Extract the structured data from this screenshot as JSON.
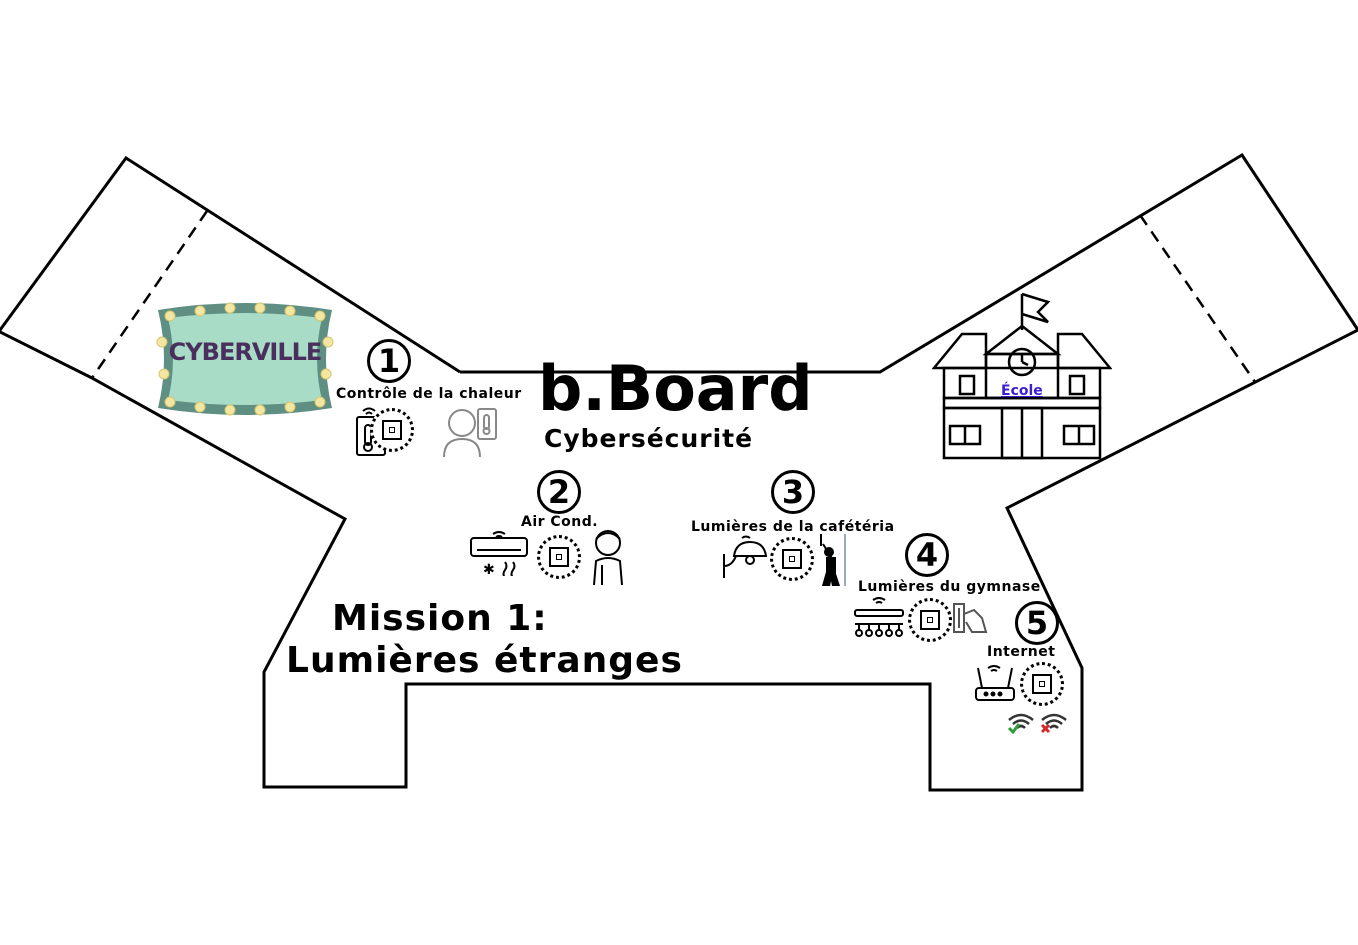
{
  "brand": {
    "title": "b.Board",
    "subtitle": "Cybersécurité"
  },
  "mission": {
    "line1": "Mission 1:",
    "line2": "Lumières étranges"
  },
  "sign": {
    "text": "CYBERVILLE",
    "frame_color": "#5e8f82",
    "inner_color": "#a9dcc7",
    "bulb_color": "#f3e6a0"
  },
  "school": {
    "label": "École"
  },
  "zones": [
    {
      "number": "1",
      "label": "Contrôle de la chaleur",
      "icons": [
        "tablet-thermostat-icon",
        "chip-icon",
        "person-thermometer-icon"
      ]
    },
    {
      "number": "2",
      "label": "Air Cond.",
      "icons": [
        "air-conditioner-icon",
        "chip-icon",
        "person-hot-icon"
      ]
    },
    {
      "number": "3",
      "label": "Lumières de la cafétéria",
      "icons": [
        "wall-lamp-icon",
        "chip-icon",
        "person-switch-icon"
      ]
    },
    {
      "number": "4",
      "label": "Lumières du gymnase",
      "icons": [
        "ceiling-lights-icon",
        "chip-icon",
        "hand-switch-icon"
      ]
    },
    {
      "number": "5",
      "label": "Internet",
      "icons": [
        "router-icon",
        "chip-icon",
        "wifi-ok-icon",
        "wifi-off-icon"
      ]
    }
  ],
  "colors": {
    "wifi_ok": "#2e9e3a",
    "wifi_off": "#d42a2a",
    "link": "#3b1fd1"
  }
}
